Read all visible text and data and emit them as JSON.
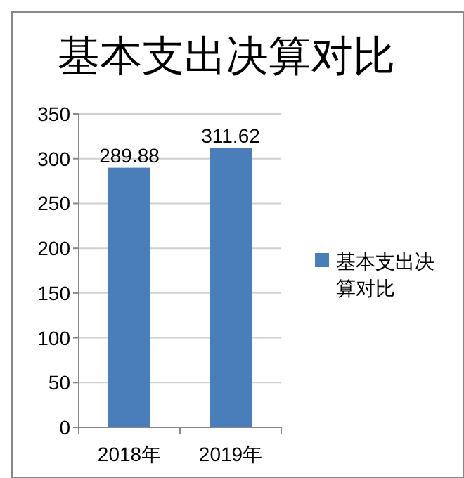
{
  "chart_data": {
    "type": "bar",
    "title": "基本支出决算对比",
    "categories": [
      "2018年",
      "2019年"
    ],
    "series": [
      {
        "name": "基本支出决算对比",
        "color": "#4a7ebb",
        "values": [
          289.88,
          311.62
        ]
      }
    ],
    "ylim": [
      0,
      350
    ],
    "yticks": [
      0,
      50,
      100,
      150,
      200,
      250,
      300,
      350
    ],
    "grid": "y",
    "legend": "right",
    "data_labels": true
  }
}
